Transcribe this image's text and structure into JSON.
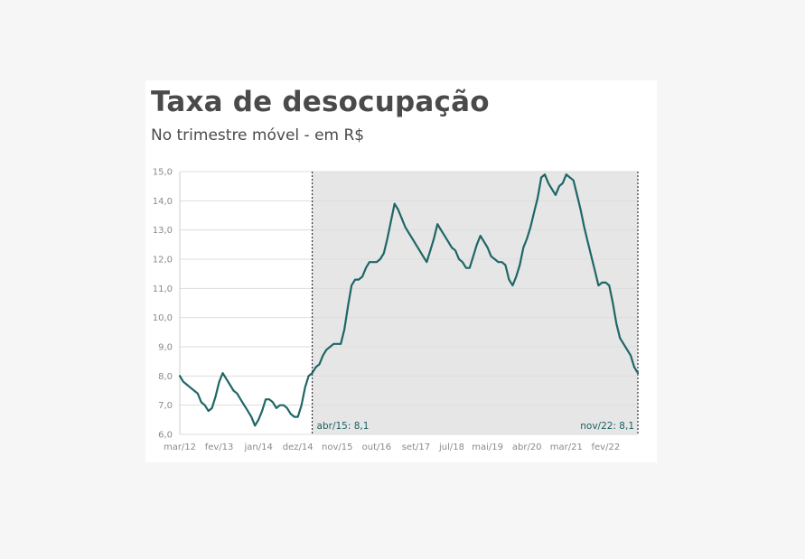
{
  "title": "Taxa de desocupação",
  "subtitle": "No trimestre móvel - em R$",
  "colors": {
    "line": "#1f6666",
    "shade": "#e6e6e6",
    "grid": "#dddddd",
    "annotation": "#1d6060"
  },
  "chart_data": {
    "type": "line",
    "title": "Taxa de desocupação",
    "subtitle": "No trimestre móvel - em R$",
    "ylim": [
      6.0,
      15.0
    ],
    "y_ticks": [
      "6,0",
      "7,0",
      "8,0",
      "9,0",
      "10,0",
      "11,0",
      "12,0",
      "13,0",
      "14,0",
      "15,0"
    ],
    "x_ticks": [
      "mar/12",
      "fev/13",
      "jan/14",
      "dez/14",
      "nov/15",
      "out/16",
      "set/17",
      "jul/18",
      "mai/19",
      "abr/20",
      "mar/21",
      "fev/22"
    ],
    "grid": "horizontal",
    "shaded_period": {
      "from": "abr/15",
      "to": "nov/22"
    },
    "annotations": [
      {
        "label": "abr/15: 8,1",
        "at": "abr/15"
      },
      {
        "label": "nov/22: 8,1",
        "at": "nov/22"
      }
    ],
    "series": [
      {
        "values": [
          8.0,
          7.8,
          7.7,
          7.6,
          7.5,
          7.4,
          7.1,
          7.0,
          6.8,
          6.9,
          7.3,
          7.8,
          8.1,
          7.9,
          7.7,
          7.5,
          7.4,
          7.2,
          7.0,
          6.8,
          6.6,
          6.3,
          6.5,
          6.8,
          7.2,
          7.2,
          7.1,
          6.9,
          7.0,
          7.0,
          6.9,
          6.7,
          6.6,
          6.6,
          7.0,
          7.6,
          8.0,
          8.1,
          8.3,
          8.4,
          8.7,
          8.9,
          9.0,
          9.1,
          9.1,
          9.1,
          9.6,
          10.4,
          11.1,
          11.3,
          11.3,
          11.4,
          11.7,
          11.9,
          11.9,
          11.9,
          12.0,
          12.2,
          12.7,
          13.3,
          13.9,
          13.7,
          13.4,
          13.1,
          12.9,
          12.7,
          12.5,
          12.3,
          12.1,
          11.9,
          12.3,
          12.7,
          13.2,
          13.0,
          12.8,
          12.6,
          12.4,
          12.3,
          12.0,
          11.9,
          11.7,
          11.7,
          12.1,
          12.5,
          12.8,
          12.6,
          12.4,
          12.1,
          12.0,
          11.9,
          11.9,
          11.8,
          11.3,
          11.1,
          11.4,
          11.8,
          12.4,
          12.7,
          13.1,
          13.6,
          14.1,
          14.8,
          14.9,
          14.6,
          14.4,
          14.2,
          14.5,
          14.6,
          14.9,
          14.8,
          14.7,
          14.2,
          13.7,
          13.1,
          12.6,
          12.1,
          11.6,
          11.1,
          11.2,
          11.2,
          11.1,
          10.5,
          9.8,
          9.3,
          9.1,
          8.9,
          8.7,
          8.3,
          8.1
        ]
      }
    ]
  }
}
